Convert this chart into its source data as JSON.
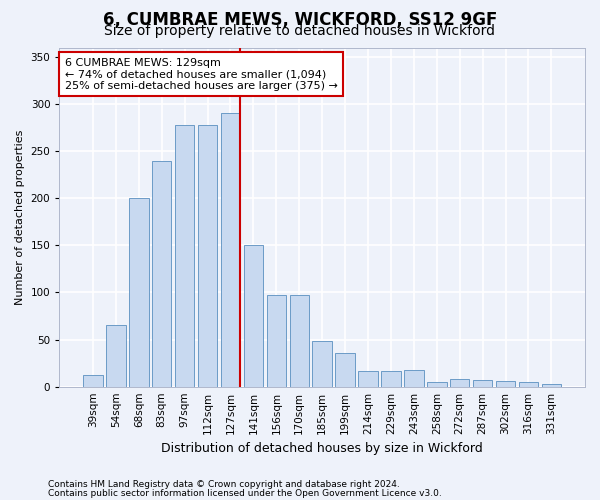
{
  "title1": "6, CUMBRAE MEWS, WICKFORD, SS12 9GF",
  "title2": "Size of property relative to detached houses in Wickford",
  "xlabel": "Distribution of detached houses by size in Wickford",
  "ylabel": "Number of detached properties",
  "categories": [
    "39sqm",
    "54sqm",
    "68sqm",
    "83sqm",
    "97sqm",
    "112sqm",
    "127sqm",
    "141sqm",
    "156sqm",
    "170sqm",
    "185sqm",
    "199sqm",
    "214sqm",
    "229sqm",
    "243sqm",
    "258sqm",
    "272sqm",
    "287sqm",
    "302sqm",
    "316sqm",
    "331sqm"
  ],
  "values": [
    12,
    65,
    200,
    240,
    278,
    278,
    290,
    150,
    97,
    97,
    48,
    36,
    17,
    17,
    18,
    5,
    8,
    7,
    6,
    5,
    3
  ],
  "bar_color": "#c8d9f0",
  "bar_edge_color": "#5a8fc0",
  "vline_color": "#cc0000",
  "vline_index": 6,
  "annotation_title": "6 CUMBRAE MEWS: 129sqm",
  "annotation_line1": "← 74% of detached houses are smaller (1,094)",
  "annotation_line2": "25% of semi-detached houses are larger (375) →",
  "annotation_box_edgecolor": "#cc0000",
  "ylim": [
    0,
    360
  ],
  "yticks": [
    0,
    50,
    100,
    150,
    200,
    250,
    300,
    350
  ],
  "footer1": "Contains HM Land Registry data © Crown copyright and database right 2024.",
  "footer2": "Contains public sector information licensed under the Open Government Licence v3.0.",
  "bg_color": "#eef2fa",
  "grid_color": "#ffffff",
  "title1_fontsize": 12,
  "title2_fontsize": 10,
  "ylabel_fontsize": 8,
  "xlabel_fontsize": 9,
  "tick_fontsize": 7.5,
  "footer_fontsize": 6.5,
  "ann_fontsize": 8
}
